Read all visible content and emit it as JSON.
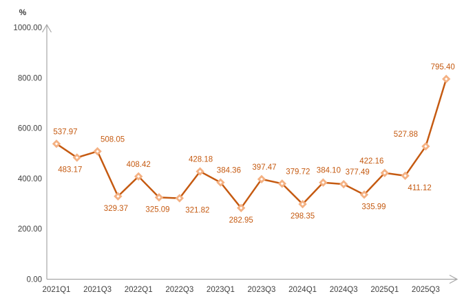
{
  "chart_header": {
    "unit_label": "%"
  },
  "chart_data": {
    "type": "line",
    "title": "",
    "xlabel": "",
    "ylabel": "%",
    "ylim": [
      0,
      1000
    ],
    "grid": false,
    "legend": "none",
    "x": [
      "2021Q1",
      "2021Q2",
      "2021Q3",
      "2021Q4",
      "2022Q1",
      "2022Q2",
      "2022Q3",
      "2022Q4",
      "2023Q1",
      "2023Q2",
      "2023Q3",
      "2023Q4",
      "2024Q1",
      "2024Q2",
      "2024Q3",
      "2024Q4",
      "2025Q1",
      "2025Q2",
      "2025Q3",
      "2025Q4"
    ],
    "values": [
      537.97,
      483.17,
      508.05,
      329.37,
      408.42,
      325.09,
      321.82,
      428.18,
      384.36,
      282.95,
      397.47,
      379.72,
      298.35,
      384.1,
      377.49,
      335.99,
      422.16,
      411.12,
      527.88,
      795.4
    ],
    "data_labels": [
      "537.97",
      "483.17",
      "508.05",
      "329.37",
      "408.42",
      "325.09",
      "321.82",
      "428.18",
      "384.36",
      "282.95",
      "397.47",
      "379.72",
      "298.35",
      "384.10",
      "377.49",
      "335.99",
      "422.16",
      "411.12",
      "527.88",
      "795.40"
    ],
    "x_tick_labels": [
      "2021Q1",
      "2021Q3",
      "2022Q1",
      "2022Q3",
      "2023Q1",
      "2023Q3",
      "2024Q1",
      "2024Q3",
      "2025Q1",
      "2025Q3"
    ],
    "x_tick_every": 2,
    "y_tick_values": [
      0,
      200,
      400,
      600,
      800,
      1000
    ],
    "y_tick_labels": [
      "0.00",
      "200.00",
      "400.00",
      "600.00",
      "800.00",
      "1000.00"
    ],
    "label_layout": [
      {
        "pos": "above",
        "dx": 13
      },
      {
        "pos": "below",
        "dx": -10
      },
      {
        "pos": "above",
        "dx": 22
      },
      {
        "pos": "below",
        "dx": -3
      },
      {
        "pos": "above",
        "dx": 0
      },
      {
        "pos": "below",
        "dx": -2
      },
      {
        "pos": "below",
        "dx": 26
      },
      {
        "pos": "above",
        "dx": 1
      },
      {
        "pos": "above",
        "dx": 12
      },
      {
        "pos": "below",
        "dx": 0
      },
      {
        "pos": "above",
        "dx": 4
      },
      {
        "pos": "above",
        "dx": 23
      },
      {
        "pos": "below",
        "dx": 0
      },
      {
        "pos": "above",
        "dx": 8
      },
      {
        "pos": "above",
        "dx": 20
      },
      {
        "pos": "below",
        "dx": 14
      },
      {
        "pos": "above",
        "dx": -19
      },
      {
        "pos": "below",
        "dx": 21
      },
      {
        "pos": "above",
        "dx": -29
      },
      {
        "pos": "above",
        "dx": -5
      }
    ],
    "colors": {
      "line": "#C55A11",
      "marker_stroke": "#F4B183",
      "marker_fill": "#FFFDFB",
      "data_label": "#C55A11",
      "axis_line": "#A6A6A6",
      "axis_text": "#404040"
    }
  }
}
